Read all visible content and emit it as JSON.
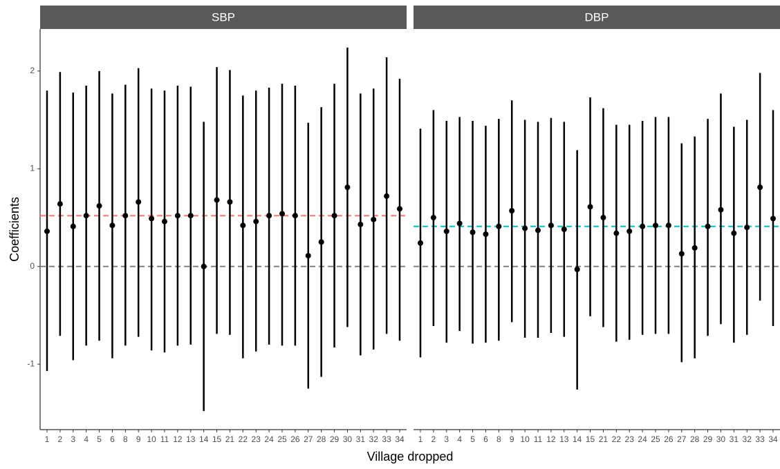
{
  "chart_data": [
    {
      "type": "errorbar",
      "title": "SBP",
      "ylabel": "Coefficients",
      "xlabel": "Village dropped",
      "categories": [
        "1",
        "2",
        "3",
        "4",
        "5",
        "6",
        "8",
        "9",
        "10",
        "11",
        "12",
        "13",
        "14",
        "15",
        "21",
        "22",
        "23",
        "24",
        "25",
        "26",
        "27",
        "28",
        "29",
        "30",
        "31",
        "32",
        "33",
        "34"
      ],
      "values": [
        0.36,
        0.64,
        0.41,
        0.52,
        0.62,
        0.42,
        0.52,
        0.66,
        0.49,
        0.46,
        0.52,
        0.52,
        0.0,
        0.68,
        0.66,
        0.42,
        0.46,
        0.52,
        0.54,
        0.52,
        0.11,
        0.25,
        0.52,
        0.81,
        0.43,
        0.48,
        0.72,
        0.59
      ],
      "lower": [
        -1.07,
        -0.71,
        -0.96,
        -0.81,
        -0.76,
        -0.94,
        -0.81,
        -0.72,
        -0.86,
        -0.88,
        -0.81,
        -0.8,
        -1.48,
        -0.69,
        -0.7,
        -0.94,
        -0.87,
        -0.8,
        -0.81,
        -0.81,
        -1.25,
        -1.13,
        -0.83,
        -0.62,
        -0.91,
        -0.85,
        -0.69,
        -0.76
      ],
      "upper": [
        1.8,
        1.99,
        1.78,
        1.85,
        2.0,
        1.77,
        1.86,
        2.03,
        1.82,
        1.8,
        1.85,
        1.84,
        1.48,
        2.04,
        2.01,
        1.75,
        1.8,
        1.83,
        1.87,
        1.85,
        1.47,
        1.63,
        1.87,
        2.24,
        1.77,
        1.82,
        2.14,
        1.92
      ],
      "color": "#000000",
      "mean_line": 0.52,
      "mean_color": "#f8766d",
      "zero_line": 0,
      "ylim": [
        -1.67,
        2.43
      ],
      "yticks": [
        -1,
        0,
        1,
        2
      ]
    },
    {
      "type": "errorbar",
      "title": "DBP",
      "categories": [
        "1",
        "2",
        "3",
        "4",
        "5",
        "6",
        "8",
        "9",
        "10",
        "11",
        "12",
        "13",
        "14",
        "15",
        "21",
        "22",
        "23",
        "24",
        "25",
        "26",
        "27",
        "28",
        "29",
        "30",
        "31",
        "32",
        "33",
        "34"
      ],
      "values": [
        0.24,
        0.5,
        0.36,
        0.44,
        0.35,
        0.33,
        0.41,
        0.57,
        0.39,
        0.37,
        0.42,
        0.38,
        -0.03,
        0.61,
        0.5,
        0.34,
        0.36,
        0.41,
        0.42,
        0.42,
        0.13,
        0.19,
        0.41,
        0.58,
        0.34,
        0.4,
        0.81,
        0.49
      ],
      "lower": [
        -0.93,
        -0.61,
        -0.78,
        -0.66,
        -0.79,
        -0.78,
        -0.76,
        -0.57,
        -0.73,
        -0.73,
        -0.68,
        -0.72,
        -1.26,
        -0.51,
        -0.62,
        -0.77,
        -0.75,
        -0.7,
        -0.69,
        -0.69,
        -0.98,
        -0.94,
        -0.71,
        -0.59,
        -0.78,
        -0.7,
        -0.35,
        -0.61
      ],
      "upper": [
        1.41,
        1.6,
        1.49,
        1.53,
        1.49,
        1.44,
        1.51,
        1.7,
        1.5,
        1.48,
        1.52,
        1.48,
        1.19,
        1.73,
        1.62,
        1.45,
        1.45,
        1.49,
        1.53,
        1.53,
        1.26,
        1.33,
        1.51,
        1.77,
        1.43,
        1.5,
        1.98,
        1.6
      ],
      "color": "#000000",
      "mean_line": 0.41,
      "mean_color": "#00bfc4",
      "zero_line": 0,
      "ylim": [
        -1.67,
        2.43
      ]
    }
  ]
}
